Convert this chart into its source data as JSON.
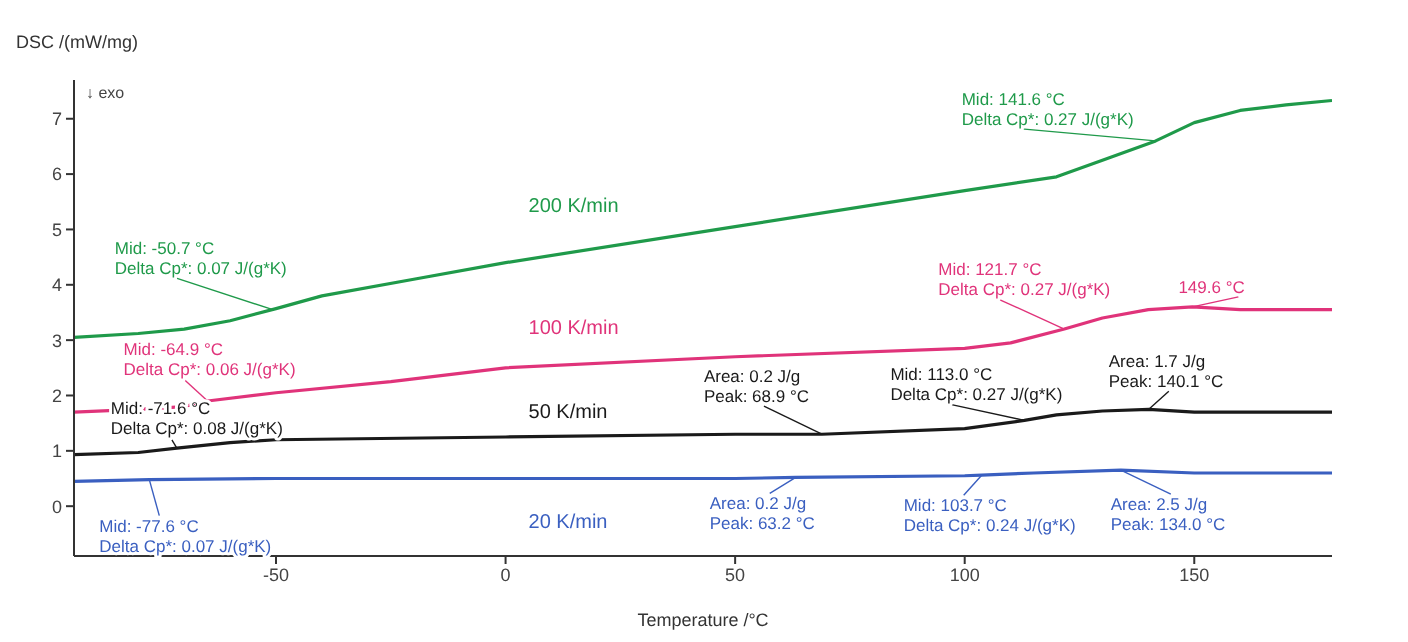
{
  "chart_data": {
    "type": "line",
    "xlabel": "Temperature /°C",
    "ylabel": "DSC /(mW/mg)",
    "xlim": [
      -94,
      180
    ],
    "xticks": [
      -50,
      0,
      50,
      100,
      150
    ],
    "ylim": [
      -0.9,
      7.7
    ],
    "yticks": [
      0,
      1,
      2,
      3,
      4,
      5,
      6,
      7
    ],
    "grid": false,
    "legend": false,
    "marker": "none",
    "line_style": "solid",
    "series": [
      {
        "name": "200 K/min",
        "color": "#1f9a4a",
        "x": [
          -94,
          -80,
          -70,
          -60,
          -50,
          -40,
          -20,
          0,
          50,
          100,
          120,
          130,
          141.6,
          150,
          160,
          170,
          180
        ],
        "values": [
          3.05,
          3.12,
          3.2,
          3.35,
          3.57,
          3.8,
          4.1,
          4.4,
          5.05,
          5.7,
          5.95,
          6.25,
          6.6,
          6.93,
          7.15,
          7.25,
          7.33
        ]
      },
      {
        "name": "100 K/min",
        "color": "#e0337a",
        "x": [
          -94,
          -80,
          -70,
          -64.9,
          -50,
          -25,
          0,
          50,
          100,
          110,
          121.7,
          130,
          140,
          149.6,
          160,
          170,
          180
        ],
        "values": [
          1.7,
          1.75,
          1.8,
          1.9,
          2.05,
          2.25,
          2.5,
          2.7,
          2.85,
          2.95,
          3.2,
          3.4,
          3.55,
          3.6,
          3.55,
          3.55,
          3.55
        ]
      },
      {
        "name": "50 K/min",
        "color": "#1a1a1a",
        "x": [
          -94,
          -80,
          -71.6,
          -60,
          -50,
          0,
          50,
          68.9,
          100,
          113,
          120,
          130,
          140.1,
          150,
          160,
          180
        ],
        "values": [
          0.93,
          0.97,
          1.05,
          1.15,
          1.2,
          1.25,
          1.3,
          1.3,
          1.4,
          1.55,
          1.65,
          1.72,
          1.75,
          1.7,
          1.7,
          1.7
        ]
      },
      {
        "name": "20 K/min",
        "color": "#3a5fc0",
        "x": [
          -94,
          -77.6,
          -50,
          0,
          50,
          63.2,
          100,
          103.7,
          115,
          134,
          150,
          165,
          180
        ],
        "values": [
          0.45,
          0.48,
          0.5,
          0.5,
          0.5,
          0.52,
          0.55,
          0.56,
          0.6,
          0.65,
          0.6,
          0.6,
          0.6
        ]
      }
    ],
    "annotations": [
      {
        "text": "Mid: -50.7 °C\nDelta Cp*: 0.07 J/(g*K)",
        "x": -50.7,
        "y": 3.55
      },
      {
        "text": "Mid: 141.6 °C\nDelta Cp*: 0.27 J/(g*K)",
        "x": 141.6,
        "y": 6.6
      },
      {
        "text": "Mid: -64.9 °C\nDelta Cp*: 0.06 J/(g*K)",
        "x": -64.9,
        "y": 1.9
      },
      {
        "text": "Mid: 121.7 °C\nDelta Cp*: 0.27 J/(g*K)",
        "x": 121.7,
        "y": 3.2
      },
      {
        "text": "149.6 °C",
        "x": 149.6,
        "y": 3.6
      },
      {
        "text": "Mid: -71.6 °C\nDelta Cp*: 0.08 J/(g*K)",
        "x": -71.6,
        "y": 1.05
      },
      {
        "text": "Area: 0.2 J/g\nPeak: 68.9 °C",
        "x": 68.9,
        "y": 1.3
      },
      {
        "text": "Mid: 113.0 °C\nDelta Cp*: 0.27 J/(g*K)",
        "x": 113,
        "y": 1.55
      },
      {
        "text": "Area: 1.7 J/g\nPeak: 140.1 °C",
        "x": 140.1,
        "y": 1.75
      },
      {
        "text": "Mid: -77.6 °C\nDelta Cp*: 0.07 J/(g*K)",
        "x": -77.6,
        "y": 0.48
      },
      {
        "text": "Area: 0.2 J/g\nPeak: 63.2 °C",
        "x": 63.2,
        "y": 0.52
      },
      {
        "text": "Mid: 103.7 °C\nDelta Cp*: 0.24 J/(g*K)",
        "x": 103.7,
        "y": 0.56
      },
      {
        "text": "Area: 2.5 J/g\nPeak: 134.0 °C",
        "x": 134,
        "y": 0.65
      },
      "↓ exo"
    ]
  }
}
